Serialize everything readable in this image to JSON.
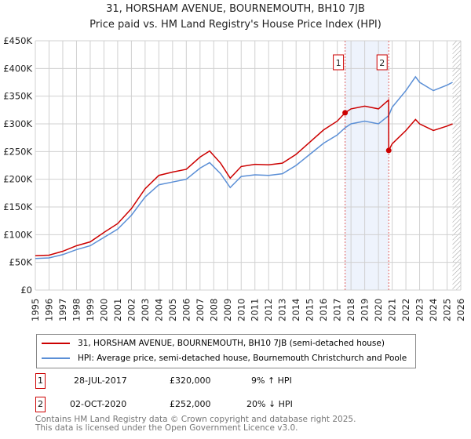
{
  "title": "31, HORSHAM AVENUE, BOURNEMOUTH, BH10 7JB",
  "subtitle": "Price paid vs. HM Land Registry's House Price Index (HPI)",
  "chart_data": {
    "type": "line",
    "title": "31, HORSHAM AVENUE, BOURNEMOUTH, BH10 7JB",
    "subtitle": "Price paid vs. HM Land Registry's House Price Index (HPI)",
    "xlim": [
      1995,
      2026
    ],
    "ylim": [
      0,
      450000
    ],
    "x_ticks": [
      "1995",
      "1996",
      "1997",
      "1998",
      "1999",
      "2000",
      "2001",
      "2002",
      "2003",
      "2004",
      "2005",
      "2006",
      "2007",
      "2008",
      "2009",
      "2010",
      "2011",
      "2012",
      "2013",
      "2014",
      "2015",
      "2016",
      "2017",
      "2018",
      "2019",
      "2020",
      "2021",
      "2022",
      "2023",
      "2024",
      "2025",
      "2026"
    ],
    "y_ticks": [
      {
        "v": 0,
        "label": "£0"
      },
      {
        "v": 50000,
        "label": "£50K"
      },
      {
        "v": 100000,
        "label": "£100K"
      },
      {
        "v": 150000,
        "label": "£150K"
      },
      {
        "v": 200000,
        "label": "£200K"
      },
      {
        "v": 250000,
        "label": "£250K"
      },
      {
        "v": 300000,
        "label": "£300K"
      },
      {
        "v": 350000,
        "label": "£350K"
      },
      {
        "v": 400000,
        "label": "£400K"
      },
      {
        "v": 450000,
        "label": "£450K"
      }
    ],
    "grid": true,
    "series": [
      {
        "name": "31, HORSHAM AVENUE, BOURNEMOUTH, BH10 7JB (semi-detached house)",
        "color": "#cc0000",
        "x": [
          1995,
          1996,
          1997,
          1998,
          1999,
          2000,
          2001,
          2002,
          2003,
          2004,
          2005,
          2006,
          2007,
          2007.7,
          2008.5,
          2009.2,
          2010,
          2011,
          2012,
          2013,
          2014,
          2015,
          2016,
          2017,
          2017.57,
          2018,
          2019,
          2020,
          2020.74,
          2020.75,
          2021,
          2022,
          2022.7,
          2023,
          2024,
          2025,
          2025.4
        ],
        "y": [
          62000,
          63000,
          70000,
          80000,
          87000,
          104000,
          120000,
          147000,
          183000,
          207000,
          213000,
          218000,
          240000,
          251000,
          229000,
          202000,
          223000,
          227000,
          226000,
          229000,
          245000,
          267000,
          289000,
          305000,
          320000,
          327000,
          332000,
          327000,
          343000,
          252000,
          264000,
          288000,
          308000,
          300000,
          288000,
          296000,
          300000
        ]
      },
      {
        "name": "HPI: Average price, semi-detached house, Bournemouth Christchurch and Poole",
        "color": "#5b8fd6",
        "x": [
          1995,
          1996,
          1997,
          1998,
          1999,
          2000,
          2001,
          2002,
          2003,
          2004,
          2005,
          2006,
          2007,
          2007.7,
          2008.5,
          2009.2,
          2010,
          2011,
          2012,
          2013,
          2014,
          2015,
          2016,
          2017,
          2017.57,
          2018,
          2019,
          2020,
          2020.75,
          2021,
          2022,
          2022.7,
          2023,
          2024,
          2025,
          2025.4
        ],
        "y": [
          57000,
          58000,
          64000,
          73000,
          80000,
          95000,
          110000,
          135000,
          168000,
          190000,
          195000,
          200000,
          220000,
          230000,
          210000,
          185000,
          205000,
          208000,
          207000,
          210000,
          225000,
          245000,
          265000,
          280000,
          293000,
          300000,
          305000,
          300000,
          315000,
          330000,
          360000,
          385000,
          375000,
          360000,
          370000,
          375000
        ]
      }
    ],
    "annotations": [
      {
        "label": "1",
        "x": 2017.57,
        "y": 320000
      },
      {
        "label": "2",
        "x": 2020.75,
        "y": 252000
      }
    ],
    "shaded_range": [
      2017.57,
      2020.75
    ],
    "forecast_hatch_from": 2025.4
  },
  "legend": [
    {
      "label": "31, HORSHAM AVENUE, BOURNEMOUTH, BH10 7JB (semi-detached house)",
      "color": "#cc0000"
    },
    {
      "label": "HPI: Average price, semi-detached house, Bournemouth Christchurch and Poole",
      "color": "#5b8fd6"
    }
  ],
  "transactions": [
    {
      "num": "1",
      "date": "28-JUL-2017",
      "price": "£320,000",
      "hpi": "9% ↑ HPI"
    },
    {
      "num": "2",
      "date": "02-OCT-2020",
      "price": "£252,000",
      "hpi": "20% ↓ HPI"
    }
  ],
  "footer": [
    "Contains HM Land Registry data © Crown copyright and database right 2025.",
    "This data is licensed under the Open Government Licence v3.0."
  ]
}
